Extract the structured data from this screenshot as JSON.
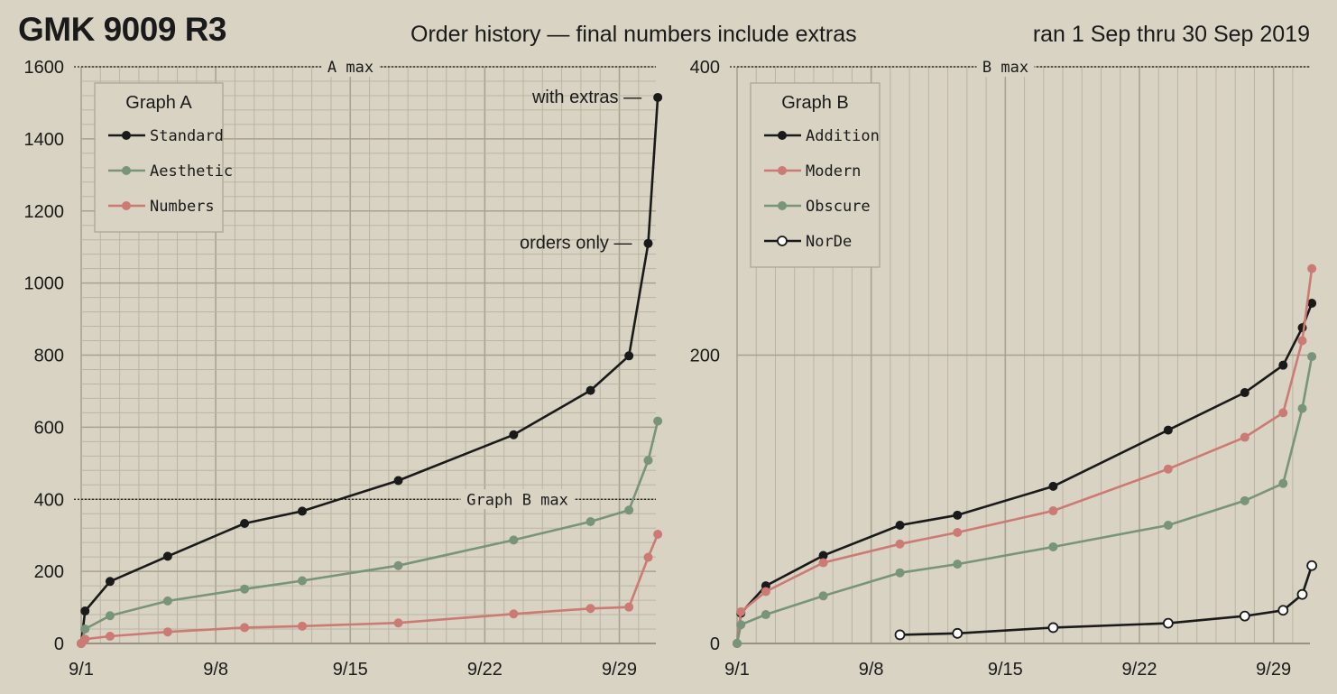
{
  "header": {
    "title": "GMK 9009 R3",
    "subtitle": "Order history — final numbers include extras",
    "date_range": "ran 1 Sep thru 30 Sep 2019"
  },
  "colors": {
    "background": "#d9d3c3",
    "grid_major": "#a8a290",
    "grid_minor": "#bab4a3",
    "black": "#1a1a1a",
    "green": "#78947a",
    "red": "#cc7a74"
  },
  "chart_data": [
    {
      "type": "line",
      "legend_title": "Graph A",
      "legend_position": "top-left",
      "x_tick_labels": [
        "9/1",
        "9/8",
        "9/15",
        "9/22",
        "9/29"
      ],
      "x_ticks_day": [
        1,
        8,
        15,
        22,
        29
      ],
      "xlim": [
        1,
        30.9
      ],
      "ylim": [
        0,
        1600
      ],
      "y_ticks": [
        0,
        200,
        400,
        600,
        800,
        1000,
        1200,
        1400,
        1600
      ],
      "grid": true,
      "reference_lines": [
        {
          "y": 1600,
          "label": "A max"
        },
        {
          "y": 400,
          "label": "Graph B max"
        }
      ],
      "annotations": [
        {
          "text": "with extras —",
          "x": 31,
          "y": 1515
        },
        {
          "text": "orders only —",
          "x": 30.5,
          "y": 1110
        }
      ],
      "series": [
        {
          "name": "Standard",
          "color": "#1a1a1a",
          "marker": "filled",
          "x": [
            1,
            1.2,
            2.5,
            5.5,
            9.5,
            12.5,
            17.5,
            23.5,
            27.5,
            29.5,
            30.5,
            31
          ],
          "y": [
            0,
            90,
            172,
            242,
            333,
            367,
            452,
            579,
            702,
            798,
            1110,
            1515
          ]
        },
        {
          "name": "Aesthetic",
          "color": "#78947a",
          "marker": "filled",
          "x": [
            1,
            1.2,
            2.5,
            5.5,
            9.5,
            12.5,
            17.5,
            23.5,
            27.5,
            29.5,
            30.5,
            31
          ],
          "y": [
            0,
            40,
            77,
            118,
            151,
            174,
            216,
            287,
            338,
            370,
            508,
            617
          ]
        },
        {
          "name": "Numbers",
          "color": "#cc7a74",
          "marker": "filled",
          "x": [
            1,
            1.2,
            2.5,
            5.5,
            9.5,
            12.5,
            17.5,
            23.5,
            27.5,
            29.5,
            30.5,
            31
          ],
          "y": [
            0,
            12,
            20,
            32,
            44,
            48,
            57,
            82,
            97,
            101,
            239,
            303
          ]
        }
      ]
    },
    {
      "type": "line",
      "legend_title": "Graph B",
      "legend_position": "top-left",
      "x_tick_labels": [
        "9/1",
        "9/8",
        "9/15",
        "9/22",
        "9/29"
      ],
      "x_ticks_day": [
        1,
        8,
        15,
        22,
        29
      ],
      "xlim": [
        1,
        30.9
      ],
      "ylim": [
        0,
        400
      ],
      "y_ticks": [
        0,
        200,
        400
      ],
      "grid": true,
      "reference_lines": [
        {
          "y": 400,
          "label": "B max"
        }
      ],
      "series": [
        {
          "name": "Addition",
          "color": "#1a1a1a",
          "marker": "filled",
          "x": [
            1,
            1.2,
            2.5,
            5.5,
            9.5,
            12.5,
            17.5,
            23.5,
            27.5,
            29.5,
            30.5,
            31
          ],
          "y": [
            0,
            21,
            40,
            61,
            82,
            89,
            109,
            148,
            174,
            193,
            219,
            236
          ]
        },
        {
          "name": "Modern",
          "color": "#cc7a74",
          "marker": "filled",
          "x": [
            1,
            1.2,
            2.5,
            5.5,
            9.5,
            12.5,
            17.5,
            23.5,
            27.5,
            29.5,
            30.5,
            31
          ],
          "y": [
            0,
            22,
            36,
            56,
            69,
            77,
            92,
            121,
            143,
            160,
            210,
            260
          ]
        },
        {
          "name": "Obscure",
          "color": "#78947a",
          "marker": "filled",
          "x": [
            1,
            1.2,
            2.5,
            5.5,
            9.5,
            12.5,
            17.5,
            23.5,
            27.5,
            29.5,
            30.5,
            31
          ],
          "y": [
            0,
            13,
            20,
            33,
            49,
            55,
            67,
            82,
            99,
            111,
            163,
            199
          ]
        },
        {
          "name": "NorDe",
          "color": "#1a1a1a",
          "marker": "hollow",
          "x": [
            9.5,
            12.5,
            17.5,
            23.5,
            27.5,
            29.5,
            30.5,
            31
          ],
          "y": [
            6,
            7,
            11,
            14,
            19,
            23,
            34,
            54
          ]
        }
      ]
    }
  ]
}
